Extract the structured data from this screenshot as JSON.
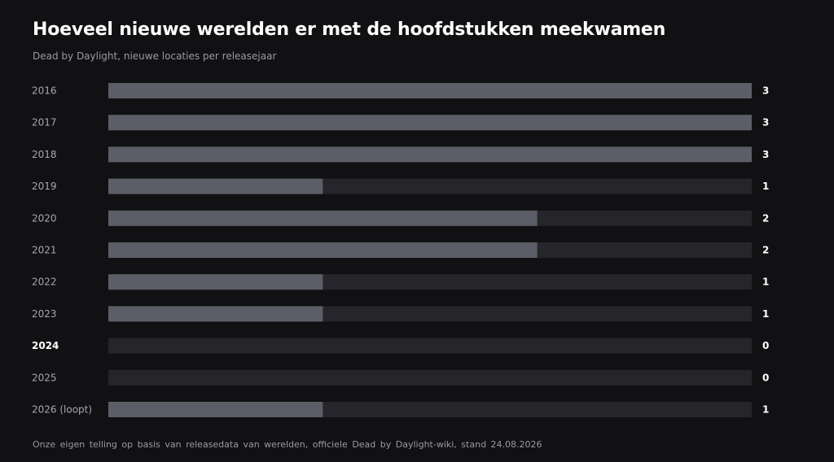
{
  "header": {
    "title": "Hoeveel nieuwe werelden er met de hoofdstukken meekwamen",
    "subtitle": "Dead by Daylight, nieuwe locaties per releasejaar"
  },
  "footer": {
    "source": "Onze eigen telling op basis van releasedata van werelden, officiele Dead by Daylight-wiki, stand 24.08.2026"
  },
  "colors": {
    "background": "#111113",
    "track": "#25252a",
    "bar": "#5b5e66"
  },
  "chart_data": {
    "type": "bar",
    "orientation": "horizontal",
    "title": "Hoeveel nieuwe werelden er met de hoofdstukken meekwamen",
    "subtitle": "Dead by Daylight, nieuwe locaties per releasejaar",
    "categories": [
      "2016",
      "2017",
      "2018",
      "2019",
      "2020",
      "2021",
      "2022",
      "2023",
      "2024",
      "2025",
      "2026 (loopt)"
    ],
    "values": [
      3,
      3,
      3,
      1,
      2,
      2,
      1,
      1,
      0,
      0,
      1
    ],
    "highlight": [
      "2024"
    ],
    "xlim": [
      0,
      3
    ],
    "grid": false,
    "legend": "none"
  }
}
